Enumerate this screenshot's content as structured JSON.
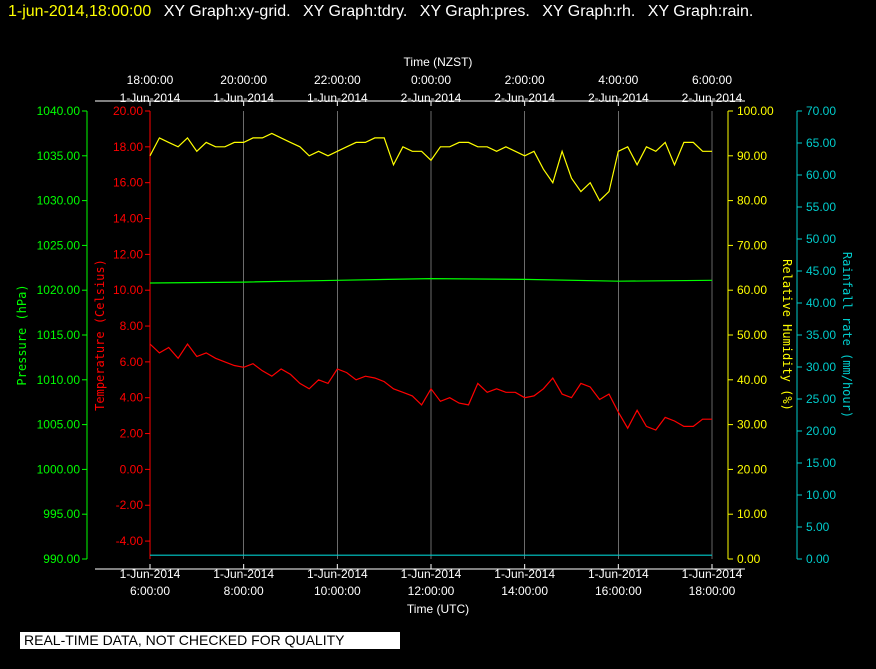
{
  "header": {
    "timestamp": "1-jun-2014,18:00:00",
    "graphs": [
      "XY Graph:xy-grid.",
      "XY Graph:tdry.",
      "XY Graph:pres.",
      "XY Graph:rh.",
      "XY Graph:rain."
    ]
  },
  "footer": {
    "note": "REAL-TIME DATA, NOT CHECKED FOR QUALITY"
  },
  "colors": {
    "background": "#000000",
    "grid": "#ffffff",
    "temperature": "#ff0000",
    "pressure": "#00ff00",
    "humidity": "#ffff00",
    "rain": "#00cccc"
  },
  "chart_data": {
    "type": "line",
    "xlabel_top": "Time (NZST)",
    "xlabel_bottom": "Time (UTC)",
    "x_ticks_top": [
      {
        "time": "18:00:00",
        "date": "1-Jun-2014"
      },
      {
        "time": "20:00:00",
        "date": "1-Jun-2014"
      },
      {
        "time": "22:00:00",
        "date": "1-Jun-2014"
      },
      {
        "time": "0:00:00",
        "date": "2-Jun-2014"
      },
      {
        "time": "2:00:00",
        "date": "2-Jun-2014"
      },
      {
        "time": "4:00:00",
        "date": "2-Jun-2014"
      },
      {
        "time": "6:00:00",
        "date": "2-Jun-2014"
      }
    ],
    "x_ticks_bottom": [
      {
        "date": "1-Jun-2014",
        "time": "6:00:00"
      },
      {
        "date": "1-Jun-2014",
        "time": "8:00:00"
      },
      {
        "date": "1-Jun-2014",
        "time": "10:00:00"
      },
      {
        "date": "1-Jun-2014",
        "time": "12:00:00"
      },
      {
        "date": "1-Jun-2014",
        "time": "14:00:00"
      },
      {
        "date": "1-Jun-2014",
        "time": "16:00:00"
      },
      {
        "date": "1-Jun-2014",
        "time": "18:00:00"
      }
    ],
    "x_range_hours_utc": [
      6,
      18
    ],
    "grid": true,
    "axes": {
      "pressure": {
        "label": "Pressure (hPa)",
        "min": 990,
        "max": 1040,
        "ticks": [
          "990.00",
          "995.00",
          "1000.00",
          "1005.00",
          "1010.00",
          "1015.00",
          "1020.00",
          "1025.00",
          "1030.00",
          "1035.00",
          "1040.00"
        ]
      },
      "temperature": {
        "label": "Temperature (Celsius)",
        "min": -5,
        "max": 20,
        "ticks": [
          "-4.00",
          "-2.00",
          "0.00",
          "2.00",
          "4.00",
          "6.00",
          "8.00",
          "10.00",
          "12.00",
          "14.00",
          "16.00",
          "18.00",
          "20.00"
        ]
      },
      "humidity": {
        "label": "Relative Humidity (%)",
        "min": 0,
        "max": 100,
        "ticks": [
          "0.00",
          "10.00",
          "20.00",
          "30.00",
          "40.00",
          "50.00",
          "60.00",
          "70.00",
          "80.00",
          "90.00",
          "100.00"
        ]
      },
      "rain": {
        "label": "Rainfall rate (mm/hour)",
        "min": 0,
        "max": 70,
        "ticks": [
          "0.00",
          "5.00",
          "10.00",
          "15.00",
          "20.00",
          "25.00",
          "30.00",
          "35.00",
          "40.00",
          "45.00",
          "50.00",
          "55.00",
          "60.00",
          "65.00",
          "70.00"
        ]
      }
    },
    "series": [
      {
        "key": "humidity",
        "hours": [
          6.0,
          6.2,
          6.4,
          6.6,
          6.8,
          7.0,
          7.2,
          7.4,
          7.6,
          7.8,
          8.0,
          8.2,
          8.4,
          8.6,
          8.8,
          9.0,
          9.2,
          9.4,
          9.6,
          9.8,
          10.0,
          10.2,
          10.4,
          10.6,
          10.8,
          11.0,
          11.2,
          11.4,
          11.6,
          11.8,
          12.0,
          12.2,
          12.4,
          12.6,
          12.8,
          13.0,
          13.2,
          13.4,
          13.6,
          13.8,
          14.0,
          14.2,
          14.4,
          14.6,
          14.8,
          15.0,
          15.2,
          15.4,
          15.6,
          15.8,
          16.0,
          16.2,
          16.4,
          16.6,
          16.8,
          17.0,
          17.2,
          17.4,
          17.6,
          17.8,
          18.0
        ],
        "values": [
          90,
          94,
          93,
          92,
          94,
          91,
          93,
          92,
          92,
          93,
          93,
          94,
          94,
          95,
          94,
          93,
          92,
          90,
          91,
          90,
          91,
          92,
          93,
          93,
          94,
          94,
          88,
          92,
          91,
          91,
          89,
          92,
          92,
          93,
          93,
          92,
          92,
          91,
          92,
          91,
          90,
          91,
          87,
          84,
          91,
          85,
          82,
          84,
          80,
          82,
          91,
          92,
          88,
          92,
          91,
          93,
          88,
          93,
          93,
          91,
          91
        ]
      },
      {
        "key": "pressure",
        "hours": [
          6,
          8,
          10,
          12,
          14,
          16,
          18
        ],
        "values": [
          1020.8,
          1020.9,
          1021.1,
          1021.3,
          1021.2,
          1021.0,
          1021.1
        ]
      },
      {
        "key": "temperature",
        "hours": [
          6.0,
          6.2,
          6.4,
          6.6,
          6.8,
          7.0,
          7.2,
          7.4,
          7.6,
          7.8,
          8.0,
          8.2,
          8.4,
          8.6,
          8.8,
          9.0,
          9.2,
          9.4,
          9.6,
          9.8,
          10.0,
          10.2,
          10.4,
          10.6,
          10.8,
          11.0,
          11.2,
          11.4,
          11.6,
          11.8,
          12.0,
          12.2,
          12.4,
          12.6,
          12.8,
          13.0,
          13.2,
          13.4,
          13.6,
          13.8,
          14.0,
          14.2,
          14.4,
          14.6,
          14.8,
          15.0,
          15.2,
          15.4,
          15.6,
          15.8,
          16.0,
          16.2,
          16.4,
          16.6,
          16.8,
          17.0,
          17.2,
          17.4,
          17.6,
          17.8,
          18.0
        ],
        "values": [
          7.0,
          6.5,
          6.8,
          6.2,
          7.0,
          6.3,
          6.5,
          6.2,
          6.0,
          5.8,
          5.7,
          5.9,
          5.5,
          5.2,
          5.6,
          5.3,
          4.8,
          4.5,
          5.0,
          4.8,
          5.6,
          5.4,
          5.0,
          5.2,
          5.1,
          4.9,
          4.5,
          4.3,
          4.1,
          3.6,
          4.5,
          3.8,
          4.0,
          3.7,
          3.6,
          4.8,
          4.3,
          4.5,
          4.3,
          4.3,
          4.0,
          4.1,
          4.5,
          5.1,
          4.2,
          4.0,
          4.8,
          4.6,
          3.9,
          4.2,
          3.2,
          2.3,
          3.3,
          2.4,
          2.2,
          2.9,
          2.7,
          2.4,
          2.4,
          2.8,
          2.8
        ]
      },
      {
        "key": "rain",
        "hours": [
          6,
          18
        ],
        "values": [
          0.6,
          0.6
        ]
      }
    ]
  }
}
